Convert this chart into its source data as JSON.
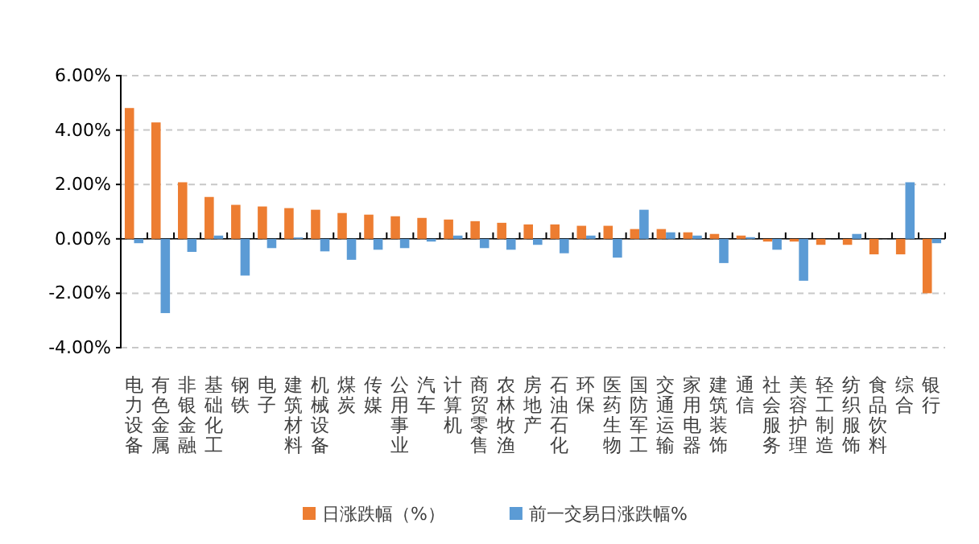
{
  "chart_data": {
    "type": "bar",
    "categories": [
      "电力设备",
      "有色金属",
      "非银金融",
      "基础化工",
      "钢铁",
      "电子",
      "建筑材料",
      "机械设备",
      "煤炭",
      "传媒",
      "公用事业",
      "汽车",
      "计算机",
      "商贸零售",
      "农林牧渔",
      "房地产",
      "石油石化",
      "环保",
      "医药生物",
      "国防军工",
      "交通运输",
      "家用电器",
      "建筑装饰",
      "通信",
      "社会服务",
      "美容护理",
      "轻工制造",
      "纺织服饰",
      "食品饮料",
      "综合",
      "银行"
    ],
    "series": [
      {
        "name": "日涨跌幅（%）",
        "color": "#ed7d31",
        "values": [
          4.81,
          4.28,
          2.08,
          1.54,
          1.25,
          1.19,
          1.13,
          1.07,
          0.95,
          0.89,
          0.83,
          0.77,
          0.71,
          0.65,
          0.59,
          0.53,
          0.53,
          0.48,
          0.48,
          0.36,
          0.36,
          0.24,
          0.18,
          0.12,
          -0.1,
          -0.1,
          -0.22,
          -0.22,
          -0.57,
          -0.57,
          -2.0
        ]
      },
      {
        "name": "前一交易日涨跌幅%",
        "color": "#5b9bd5",
        "values": [
          -0.16,
          -2.73,
          -0.48,
          0.12,
          -1.35,
          -0.34,
          0.05,
          -0.46,
          -0.77,
          -0.4,
          -0.34,
          -0.1,
          0.12,
          -0.34,
          -0.4,
          -0.22,
          -0.53,
          0.12,
          -0.69,
          1.07,
          0.24,
          0.12,
          -0.89,
          0.06,
          -0.4,
          -1.54,
          0,
          0.18,
          0,
          2.08,
          -0.16
        ]
      }
    ],
    "ylim": [
      -4,
      6
    ],
    "yticks": [
      {
        "value": -4,
        "label": "-4.00%"
      },
      {
        "value": -2,
        "label": "-2.00%"
      },
      {
        "value": 0,
        "label": "0.00%"
      },
      {
        "value": 2,
        "label": "2.00%"
      },
      {
        "value": 4,
        "label": "4.00%"
      },
      {
        "value": 6,
        "label": "6.00%"
      }
    ],
    "grid": "y",
    "legend": "bottom"
  }
}
